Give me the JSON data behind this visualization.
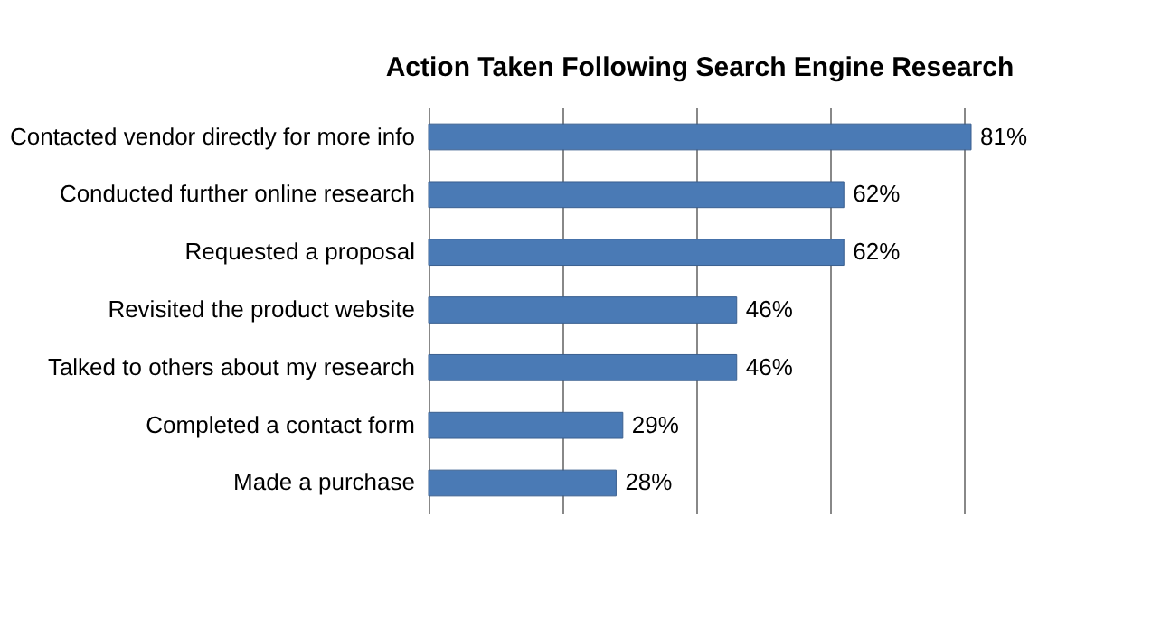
{
  "chart_data": {
    "type": "bar",
    "orientation": "horizontal",
    "title": "Action Taken Following Search Engine Research",
    "categories": [
      "Contacted vendor directly for more info",
      "Conducted further online research",
      "Requested a proposal",
      "Revisited the product website",
      "Talked to others about my research",
      "Completed a contact form",
      "Made a purchase"
    ],
    "values": [
      81,
      62,
      62,
      46,
      46,
      29,
      28
    ],
    "value_labels": [
      "81%",
      "62%",
      "62%",
      "46%",
      "46%",
      "29%",
      "28%"
    ],
    "color": "#4a7ab5",
    "xticks": [
      {
        "value": 0,
        "label": null
      },
      {
        "value": 20,
        "label": null
      },
      {
        "value": 40,
        "label": null
      },
      {
        "value": 60,
        "label": null
      },
      {
        "value": 80,
        "label": null
      }
    ],
    "grid": "x",
    "tick_labels": "y"
  }
}
